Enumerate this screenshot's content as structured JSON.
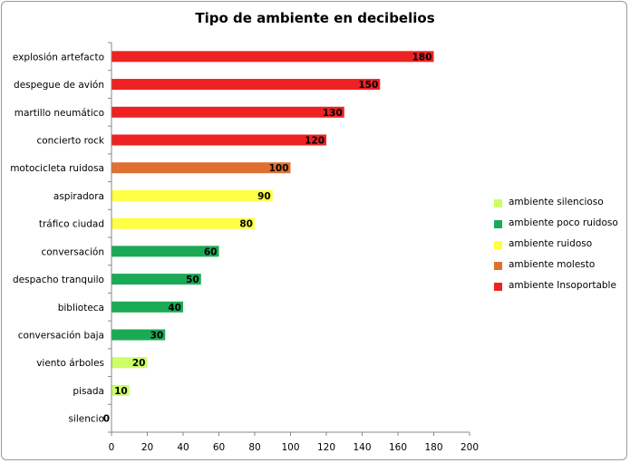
{
  "chart_data": {
    "type": "bar",
    "orientation": "horizontal",
    "title": "Tipo de ambiente en decibelios",
    "xlim": [
      0,
      200
    ],
    "xticks": [
      0,
      20,
      40,
      60,
      80,
      100,
      120,
      140,
      160,
      180,
      200
    ],
    "grid": false,
    "legend_position": "right",
    "categories": [
      "explosión artefacto",
      "despegue de avión",
      "martillo neumático",
      "concierto rock",
      "motocicleta ruidosa",
      "aspiradora",
      "tráfico ciudad",
      "conversación",
      "despacho tranquilo",
      "biblioteca",
      "conversación baja",
      "viento árboles",
      "pisada",
      "silencio"
    ],
    "values": [
      180,
      150,
      130,
      120,
      100,
      90,
      80,
      60,
      50,
      40,
      30,
      20,
      10,
      0
    ],
    "data_labels": [
      "180",
      "150",
      "130",
      "120",
      "100",
      "90",
      "80",
      "60",
      "50",
      "40",
      "30",
      "20",
      "10",
      "0"
    ],
    "classes": [
      "ambiente Insoportable",
      "ambiente Insoportable",
      "ambiente Insoportable",
      "ambiente Insoportable",
      "ambiente molesto",
      "ambiente ruidoso",
      "ambiente ruidoso",
      "ambiente poco ruidoso",
      "ambiente poco ruidoso",
      "ambiente poco ruidoso",
      "ambiente poco ruidoso",
      "ambiente silencioso",
      "ambiente silencioso",
      "ambiente silencioso"
    ],
    "legend": [
      {
        "name": "ambiente silencioso",
        "color": "#ccff66"
      },
      {
        "name": "ambiente poco ruidoso",
        "color": "#1aaa55"
      },
      {
        "name": "ambiente ruidoso",
        "color": "#ffff44"
      },
      {
        "name": "ambiente molesto",
        "color": "#e07030"
      },
      {
        "name": "ambiente Insoportable",
        "color": "#ee2222"
      }
    ]
  }
}
